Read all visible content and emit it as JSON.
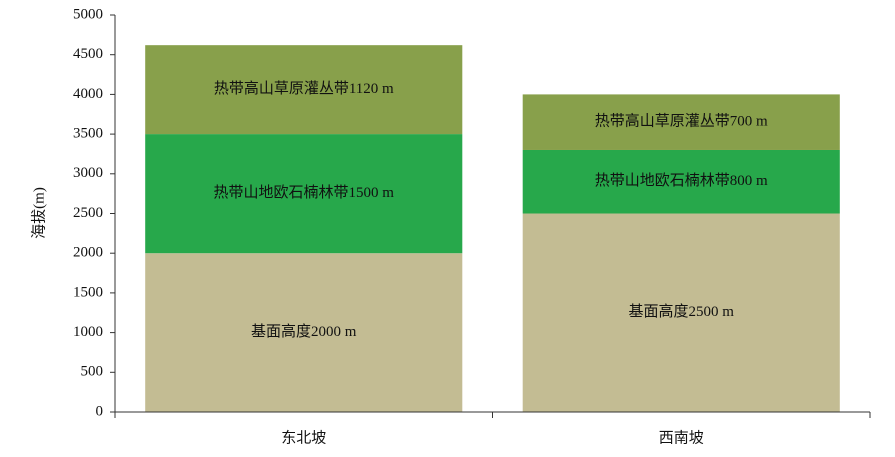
{
  "chart_data": {
    "type": "stacked-bar",
    "y_label": "海拔(m)",
    "categories": [
      "东北坡",
      "西南坡"
    ],
    "series": [
      {
        "color": "#c3bc93",
        "values": [
          2000,
          2500
        ],
        "value_labels": [
          "基面高度2000 m",
          "基面高度2500 m"
        ]
      },
      {
        "color": "#27a84b",
        "values": [
          1500,
          800
        ],
        "value_labels": [
          "热带山地欧石楠林带1500 m",
          "热带山地欧石楠林带800 m"
        ]
      },
      {
        "color": "#88a04b",
        "values": [
          1120,
          700
        ],
        "value_labels": [
          "热带高山草原灌丛带1120 m",
          "热带高山草原灌丛带700 m"
        ]
      }
    ],
    "ylim": [
      0,
      5000
    ],
    "yticks": [
      0,
      500,
      1000,
      1500,
      2000,
      2500,
      3000,
      3500,
      4000,
      4500,
      5000
    ],
    "grid": false
  }
}
